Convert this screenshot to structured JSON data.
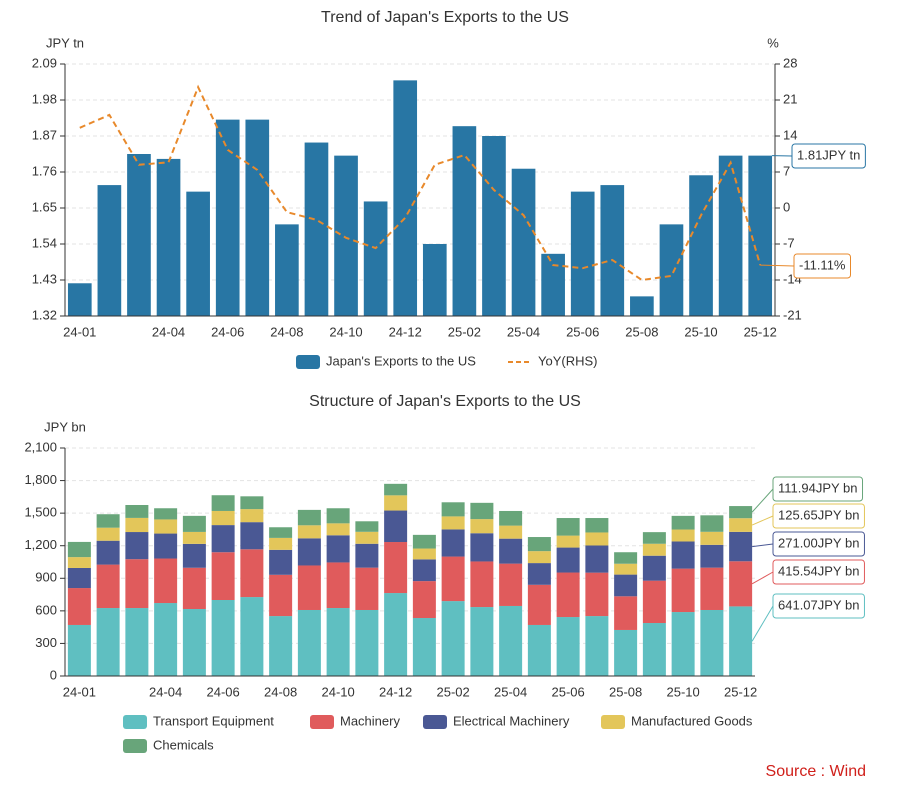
{
  "chart_data": [
    {
      "type": "bar",
      "title": "Trend of Japan's Exports to the US",
      "y_unit": "JPY tn",
      "y2_unit": "%",
      "legend": "bottom",
      "grid": true,
      "categories": [
        "24-01",
        null,
        null,
        "24-04",
        null,
        "24-06",
        null,
        "24-08",
        null,
        "24-10",
        null,
        "24-12",
        null,
        "25-02",
        null,
        "25-04",
        null,
        "25-06",
        null,
        "25-08",
        null,
        "25-10",
        null,
        "25-12"
      ],
      "ylim": [
        1.32,
        2.09
      ],
      "yticks": [
        1.32,
        1.43,
        1.54,
        1.65,
        1.76,
        1.87,
        1.98,
        2.09
      ],
      "y2lim": [
        -21,
        28
      ],
      "y2ticks": [
        -21,
        -14,
        -7,
        0,
        7,
        14,
        21,
        28
      ],
      "series": [
        {
          "name": "Japan's Exports to the US",
          "type": "bar",
          "color": "#2876a4",
          "values": [
            1.42,
            1.72,
            1.815,
            1.8,
            1.7,
            1.92,
            1.92,
            1.6,
            1.85,
            1.81,
            1.67,
            2.04,
            1.54,
            1.9,
            1.87,
            1.77,
            1.51,
            1.7,
            1.72,
            1.38,
            1.6,
            1.75,
            1.81,
            1.81
          ],
          "value_labels": [
            null,
            null,
            null,
            null,
            null,
            null,
            null,
            null,
            null,
            null,
            null,
            null,
            null,
            null,
            null,
            null,
            null,
            null,
            null,
            null,
            null,
            null,
            null,
            "1.81JPY tn"
          ]
        },
        {
          "name": "YoY(RHS)",
          "type": "line",
          "axis": "y2",
          "dashed": true,
          "color": "#e8892b",
          "values": [
            15.6,
            18.1,
            8.4,
            8.9,
            23.5,
            11.3,
            7.4,
            -0.8,
            -2.3,
            -5.8,
            -7.8,
            -1.9,
            8.4,
            10.3,
            3.5,
            -1.4,
            -11.1,
            -11.7,
            -10.1,
            -14.0,
            -13.2,
            -1.4,
            8.8,
            -11.11
          ],
          "value_labels": [
            null,
            null,
            null,
            null,
            null,
            null,
            null,
            null,
            null,
            null,
            null,
            null,
            null,
            null,
            null,
            null,
            null,
            null,
            null,
            null,
            null,
            null,
            null,
            "-11.11%"
          ]
        }
      ]
    },
    {
      "type": "stacked_bar",
      "title": "Structure of Japan's Exports to the US",
      "y_unit": "JPY bn",
      "legend": "bottom",
      "grid": true,
      "categories": [
        "24-01",
        null,
        null,
        "24-04",
        null,
        "24-06",
        null,
        "24-08",
        null,
        "24-10",
        null,
        "24-12",
        null,
        "25-02",
        null,
        "25-04",
        null,
        "25-06",
        null,
        "25-08",
        null,
        "25-10",
        null,
        "25-12"
      ],
      "ylim": [
        0,
        2100
      ],
      "yticks": [
        0,
        300,
        600,
        900,
        {
          "value": 1200,
          "label": "1,200"
        },
        {
          "value": 1500,
          "label": "1,500"
        },
        {
          "value": 1800,
          "label": "1,800"
        },
        {
          "value": 2100,
          "label": "2,100"
        }
      ],
      "series": [
        {
          "name": "Transport Equipment",
          "color": "#5fbfc1",
          "values": [
            470,
            626,
            626,
            672,
            617,
            700,
            727,
            552,
            608,
            626,
            608,
            764,
            534,
            690,
            635,
            645,
            470,
            543,
            552,
            424,
            488,
            589,
            608,
            641.07
          ],
          "value_labels": [
            null,
            null,
            null,
            null,
            null,
            null,
            null,
            null,
            null,
            null,
            null,
            null,
            null,
            null,
            null,
            null,
            null,
            null,
            null,
            null,
            null,
            null,
            null,
            "641.07JPY bn"
          ]
        },
        {
          "name": "Machinery",
          "color": "#e05b5c",
          "values": [
            340,
            400,
            450,
            410,
            380,
            440,
            440,
            380,
            410,
            420,
            390,
            470,
            340,
            410,
            420,
            390,
            370,
            410,
            400,
            310,
            390,
            400,
            390,
            415.54
          ],
          "value_labels": [
            null,
            null,
            null,
            null,
            null,
            null,
            null,
            null,
            null,
            null,
            null,
            null,
            null,
            null,
            null,
            null,
            null,
            null,
            null,
            null,
            null,
            null,
            null,
            "415.54JPY bn"
          ]
        },
        {
          "name": "Electrical Machinery",
          "color": "#4a5894",
          "values": [
            185,
            220,
            250,
            230,
            220,
            250,
            250,
            230,
            250,
            250,
            220,
            290,
            200,
            250,
            260,
            230,
            200,
            230,
            250,
            200,
            230,
            250,
            210,
            271.0
          ],
          "value_labels": [
            null,
            null,
            null,
            null,
            null,
            null,
            null,
            null,
            null,
            null,
            null,
            null,
            null,
            null,
            null,
            null,
            null,
            null,
            null,
            null,
            null,
            null,
            null,
            "271.00JPY bn"
          ]
        },
        {
          "name": "Manufactured Goods",
          "color": "#e3c65a",
          "values": [
            100,
            120,
            130,
            130,
            110,
            130,
            120,
            110,
            120,
            110,
            110,
            140,
            100,
            120,
            130,
            120,
            110,
            110,
            120,
            100,
            110,
            110,
            120,
            125.65
          ],
          "value_labels": [
            null,
            null,
            null,
            null,
            null,
            null,
            null,
            null,
            null,
            null,
            null,
            null,
            null,
            null,
            null,
            null,
            null,
            null,
            null,
            null,
            null,
            null,
            null,
            "125.65JPY bn"
          ]
        },
        {
          "name": "Chemicals",
          "color": "#68a57a",
          "values": [
            140,
            124,
            119,
            103,
            148,
            145,
            118,
            98,
            142,
            139,
            97,
            106,
            126,
            130,
            150,
            135,
            130,
            162,
            133,
            106,
            107,
            126,
            152,
            111.94
          ],
          "value_labels": [
            null,
            null,
            null,
            null,
            null,
            null,
            null,
            null,
            null,
            null,
            null,
            null,
            null,
            null,
            null,
            null,
            null,
            null,
            null,
            null,
            null,
            null,
            null,
            "111.94JPY bn"
          ]
        }
      ]
    }
  ],
  "source": "Source : Wind"
}
